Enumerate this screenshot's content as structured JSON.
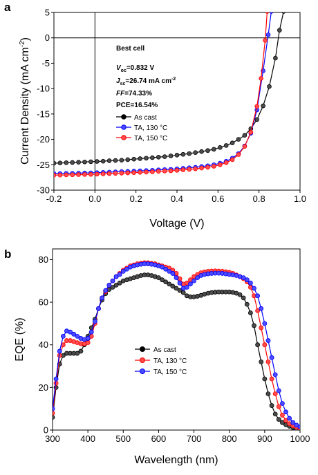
{
  "chart_data": [
    {
      "panel": "a",
      "type": "line",
      "xlabel": "Voltage (V)",
      "ylabel_main": "Current Density (mA cm",
      "ylabel_sup": "-2",
      "ylabel_close": ")",
      "xlim": [
        -0.2,
        1.0
      ],
      "ylim": [
        -30,
        5
      ],
      "x_ticks": [
        -0.2,
        0.0,
        0.2,
        0.4,
        0.6,
        0.8,
        1.0
      ],
      "x_tick_labels": [
        "-0.2",
        "0.0",
        "0.2",
        "0.4",
        "0.6",
        "0.8",
        "1.0"
      ],
      "y_ticks": [
        5,
        0,
        -5,
        -10,
        -15,
        -20,
        -25,
        -30
      ],
      "y_tick_labels": [
        "5",
        "0",
        "-5",
        "-10",
        "-15",
        "-20",
        "-25",
        "-30"
      ],
      "zero_lines": true,
      "legend_position": "center",
      "annotation": {
        "title": "Best cell",
        "voc_sym": "V",
        "voc_sub": "oc",
        "voc_val": "=0.832 V",
        "jsc_sym": "J",
        "jsc_sub": "sc",
        "jsc_val": "=26.74 mA cm",
        "jsc_sup": "-2",
        "ff_sym": "FF",
        "ff_val": "=74.33%",
        "pce": "PCE=16.54%"
      },
      "series": [
        {
          "name": "As cast",
          "color": "#000000",
          "x": [
            -0.2,
            -0.17,
            -0.14,
            -0.11,
            -0.08,
            -0.05,
            -0.02,
            0.01,
            0.04,
            0.07,
            0.1,
            0.13,
            0.16,
            0.19,
            0.22,
            0.25,
            0.28,
            0.31,
            0.34,
            0.37,
            0.4,
            0.43,
            0.46,
            0.49,
            0.52,
            0.55,
            0.58,
            0.61,
            0.64,
            0.67,
            0.7,
            0.73,
            0.76,
            0.79,
            0.82,
            0.85,
            0.88,
            0.9,
            0.92
          ],
          "y": [
            -24.7,
            -24.65,
            -24.6,
            -24.55,
            -24.5,
            -24.45,
            -24.4,
            -24.35,
            -24.3,
            -24.2,
            -24.15,
            -24.1,
            -24.0,
            -23.9,
            -23.8,
            -23.7,
            -23.6,
            -23.5,
            -23.4,
            -23.25,
            -23.1,
            -22.95,
            -22.8,
            -22.6,
            -22.4,
            -22.2,
            -21.95,
            -21.6,
            -21.2,
            -20.7,
            -20.0,
            -19.2,
            -17.9,
            -16.1,
            -13.4,
            -9.6,
            -4.0,
            1.5,
            5.2
          ]
        },
        {
          "name": "TA, 130 °C",
          "color": "#0000ff",
          "x": [
            -0.2,
            -0.17,
            -0.14,
            -0.11,
            -0.08,
            -0.05,
            -0.02,
            0.01,
            0.04,
            0.07,
            0.1,
            0.13,
            0.16,
            0.19,
            0.22,
            0.25,
            0.28,
            0.31,
            0.34,
            0.37,
            0.4,
            0.43,
            0.46,
            0.49,
            0.52,
            0.55,
            0.58,
            0.61,
            0.64,
            0.67,
            0.7,
            0.73,
            0.76,
            0.79,
            0.82,
            0.845,
            0.86
          ],
          "y": [
            -26.75,
            -26.73,
            -26.7,
            -26.68,
            -26.65,
            -26.62,
            -26.6,
            -26.55,
            -26.5,
            -26.45,
            -26.4,
            -26.35,
            -26.3,
            -26.25,
            -26.2,
            -26.15,
            -26.1,
            -26.0,
            -25.95,
            -25.9,
            -25.8,
            -25.7,
            -25.6,
            -25.5,
            -25.35,
            -25.2,
            -25.0,
            -24.7,
            -24.3,
            -23.7,
            -22.8,
            -21.3,
            -18.8,
            -14.2,
            -6.5,
            0.6,
            5.2
          ]
        },
        {
          "name": "TA, 150 °C",
          "color": "#ff0000",
          "x": [
            -0.2,
            -0.17,
            -0.14,
            -0.11,
            -0.08,
            -0.05,
            -0.02,
            0.01,
            0.04,
            0.07,
            0.1,
            0.13,
            0.16,
            0.19,
            0.22,
            0.25,
            0.28,
            0.31,
            0.34,
            0.37,
            0.4,
            0.43,
            0.46,
            0.49,
            0.52,
            0.55,
            0.58,
            0.61,
            0.64,
            0.67,
            0.7,
            0.73,
            0.76,
            0.79,
            0.81,
            0.83,
            0.84
          ],
          "y": [
            -27.05,
            -27.03,
            -27.0,
            -26.98,
            -26.95,
            -26.92,
            -26.9,
            -26.85,
            -26.8,
            -26.75,
            -26.7,
            -26.65,
            -26.6,
            -26.55,
            -26.5,
            -26.45,
            -26.4,
            -26.3,
            -26.25,
            -26.2,
            -26.1,
            -26.0,
            -25.9,
            -25.8,
            -25.65,
            -25.5,
            -25.3,
            -25.0,
            -24.6,
            -24.0,
            -23.0,
            -21.4,
            -18.6,
            -13.5,
            -8.0,
            -0.5,
            5.2
          ]
        }
      ]
    },
    {
      "panel": "b",
      "type": "line",
      "xlabel": "Wavelength (nm)",
      "ylabel": "EQE (%)",
      "xlim": [
        300,
        1000
      ],
      "ylim": [
        0,
        85
      ],
      "x_ticks": [
        300,
        400,
        500,
        600,
        700,
        800,
        900,
        1000
      ],
      "x_tick_labels": [
        "300",
        "400",
        "500",
        "600",
        "700",
        "800",
        "900",
        "1000"
      ],
      "y_ticks": [
        0,
        20,
        40,
        60,
        80
      ],
      "y_tick_labels": [
        "0",
        "20",
        "40",
        "60",
        "80"
      ],
      "legend_position": "center",
      "series": [
        {
          "name": "As cast",
          "color": "#000000",
          "x": [
            300,
            310,
            320,
            330,
            340,
            350,
            360,
            370,
            380,
            390,
            400,
            410,
            420,
            430,
            440,
            450,
            460,
            470,
            480,
            490,
            500,
            510,
            520,
            530,
            540,
            550,
            560,
            570,
            580,
            590,
            600,
            610,
            620,
            630,
            640,
            650,
            660,
            670,
            680,
            690,
            700,
            710,
            720,
            730,
            740,
            750,
            760,
            770,
            780,
            790,
            800,
            810,
            820,
            830,
            840,
            850,
            860,
            870,
            880,
            890,
            900,
            910,
            920,
            930,
            940,
            950,
            960,
            970,
            980,
            990,
            1000
          ],
          "y": [
            6,
            20,
            31,
            35,
            36,
            36,
            36,
            36,
            37,
            40,
            44,
            48,
            52,
            57,
            61,
            64,
            66,
            67,
            68,
            69,
            70,
            70.5,
            71,
            71.5,
            72,
            72.5,
            72.8,
            72.8,
            72.5,
            72,
            71.5,
            70.5,
            69.5,
            68.5,
            67.5,
            66.5,
            65.5,
            64.5,
            63,
            62.5,
            62.5,
            62.8,
            63.2,
            63.8,
            64.2,
            64.5,
            64.7,
            64.8,
            64.8,
            64.8,
            64.8,
            64.6,
            64.2,
            63.5,
            62,
            59,
            55,
            49,
            40,
            32,
            24,
            17,
            11.5,
            7.5,
            5,
            3.5,
            2.5,
            1.8,
            1.2,
            0.8,
            0.5
          ]
        },
        {
          "name": "TA, 130 °C",
          "color": "#ff0000",
          "x": [
            300,
            310,
            320,
            330,
            340,
            350,
            360,
            370,
            380,
            390,
            400,
            410,
            420,
            430,
            440,
            450,
            460,
            470,
            480,
            490,
            500,
            510,
            520,
            530,
            540,
            550,
            560,
            570,
            580,
            590,
            600,
            610,
            620,
            630,
            640,
            650,
            660,
            670,
            680,
            690,
            700,
            710,
            720,
            730,
            740,
            750,
            760,
            770,
            780,
            790,
            800,
            810,
            820,
            830,
            840,
            850,
            860,
            870,
            880,
            890,
            900,
            910,
            920,
            930,
            940,
            950,
            960,
            970,
            980,
            990,
            1000
          ],
          "y": [
            8,
            22,
            35,
            40,
            42,
            42,
            41.5,
            41,
            40.5,
            40.5,
            41,
            44,
            50,
            57,
            62,
            65,
            68,
            70,
            72,
            73.5,
            75,
            76,
            77,
            77.5,
            78,
            78.3,
            78.5,
            78.5,
            78.2,
            78,
            77.5,
            77,
            76.5,
            76,
            75,
            73.5,
            71,
            68.5,
            69,
            70.5,
            72,
            73,
            73.8,
            74.2,
            74.5,
            74.6,
            74.7,
            74.6,
            74.5,
            74.3,
            74,
            73.5,
            72.8,
            72,
            71,
            69.5,
            67,
            63,
            56,
            48,
            40,
            32,
            24,
            17,
            11,
            7,
            4.5,
            3,
            2,
            1.3,
            0.8
          ]
        },
        {
          "name": "TA, 150 °C",
          "color": "#0000ff",
          "x": [
            300,
            310,
            320,
            330,
            340,
            350,
            360,
            370,
            380,
            390,
            400,
            410,
            420,
            430,
            440,
            450,
            460,
            470,
            480,
            490,
            500,
            510,
            520,
            530,
            540,
            550,
            560,
            570,
            580,
            590,
            600,
            610,
            620,
            630,
            640,
            650,
            660,
            670,
            680,
            690,
            700,
            710,
            720,
            730,
            740,
            750,
            760,
            770,
            780,
            790,
            800,
            810,
            820,
            830,
            840,
            850,
            860,
            870,
            880,
            890,
            900,
            910,
            920,
            930,
            940,
            950,
            960,
            970,
            980,
            990,
            1000
          ],
          "y": [
            10,
            24,
            37,
            44,
            46.5,
            46,
            45,
            44,
            43,
            42.5,
            43,
            46,
            51,
            57,
            62,
            65.5,
            68,
            70,
            72,
            73,
            74.5,
            75.5,
            76.5,
            77,
            77.5,
            77.8,
            78,
            78,
            77.8,
            77.5,
            77,
            76.5,
            75.5,
            74.5,
            73.5,
            71.5,
            69,
            66.5,
            67,
            68.5,
            70,
            71.5,
            72.5,
            73,
            73.3,
            73.5,
            73.6,
            73.6,
            73.5,
            73.3,
            73,
            72.8,
            72.5,
            72,
            71.5,
            70.5,
            69,
            66.5,
            63,
            57,
            50,
            42,
            34,
            26,
            18.5,
            12.5,
            8.5,
            5.5,
            3.5,
            2.3,
            1.5
          ]
        }
      ]
    }
  ]
}
